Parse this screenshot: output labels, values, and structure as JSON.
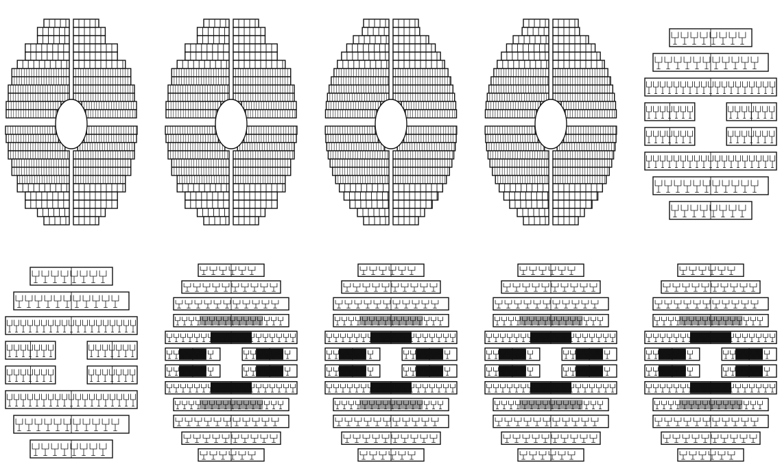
{
  "figure": {
    "panel_count": 10,
    "colors": {
      "ink": "#111111",
      "background": "#ffffff",
      "shade": "#8a8a8a"
    },
    "panels": [
      {
        "id": "p1",
        "style": "rect-grid",
        "shape": "stepped-ellipse"
      },
      {
        "id": "p2",
        "style": "rect-grid",
        "shape": "stepped-ellipse"
      },
      {
        "id": "p3",
        "style": "rect-grid",
        "shape": "ellipse"
      },
      {
        "id": "p4",
        "style": "rect-grid",
        "shape": "ellipse"
      },
      {
        "id": "p5",
        "style": "h-tree-strips",
        "shape": "stepped-ellipse"
      },
      {
        "id": "p6",
        "style": "h-tree-strips",
        "shape": "stepped-ellipse"
      },
      {
        "id": "p7",
        "style": "mixed-strips",
        "shape": "stepped-ellipse",
        "dark_core": true
      },
      {
        "id": "p8",
        "style": "mixed-strips",
        "shape": "stepped-ellipse",
        "dark_core": true
      },
      {
        "id": "p9",
        "style": "mixed-strips",
        "shape": "stepped-ellipse",
        "dark_core": true
      },
      {
        "id": "p10",
        "style": "mixed-strips",
        "shape": "stepped-ellipse",
        "dark_core": true
      }
    ]
  }
}
